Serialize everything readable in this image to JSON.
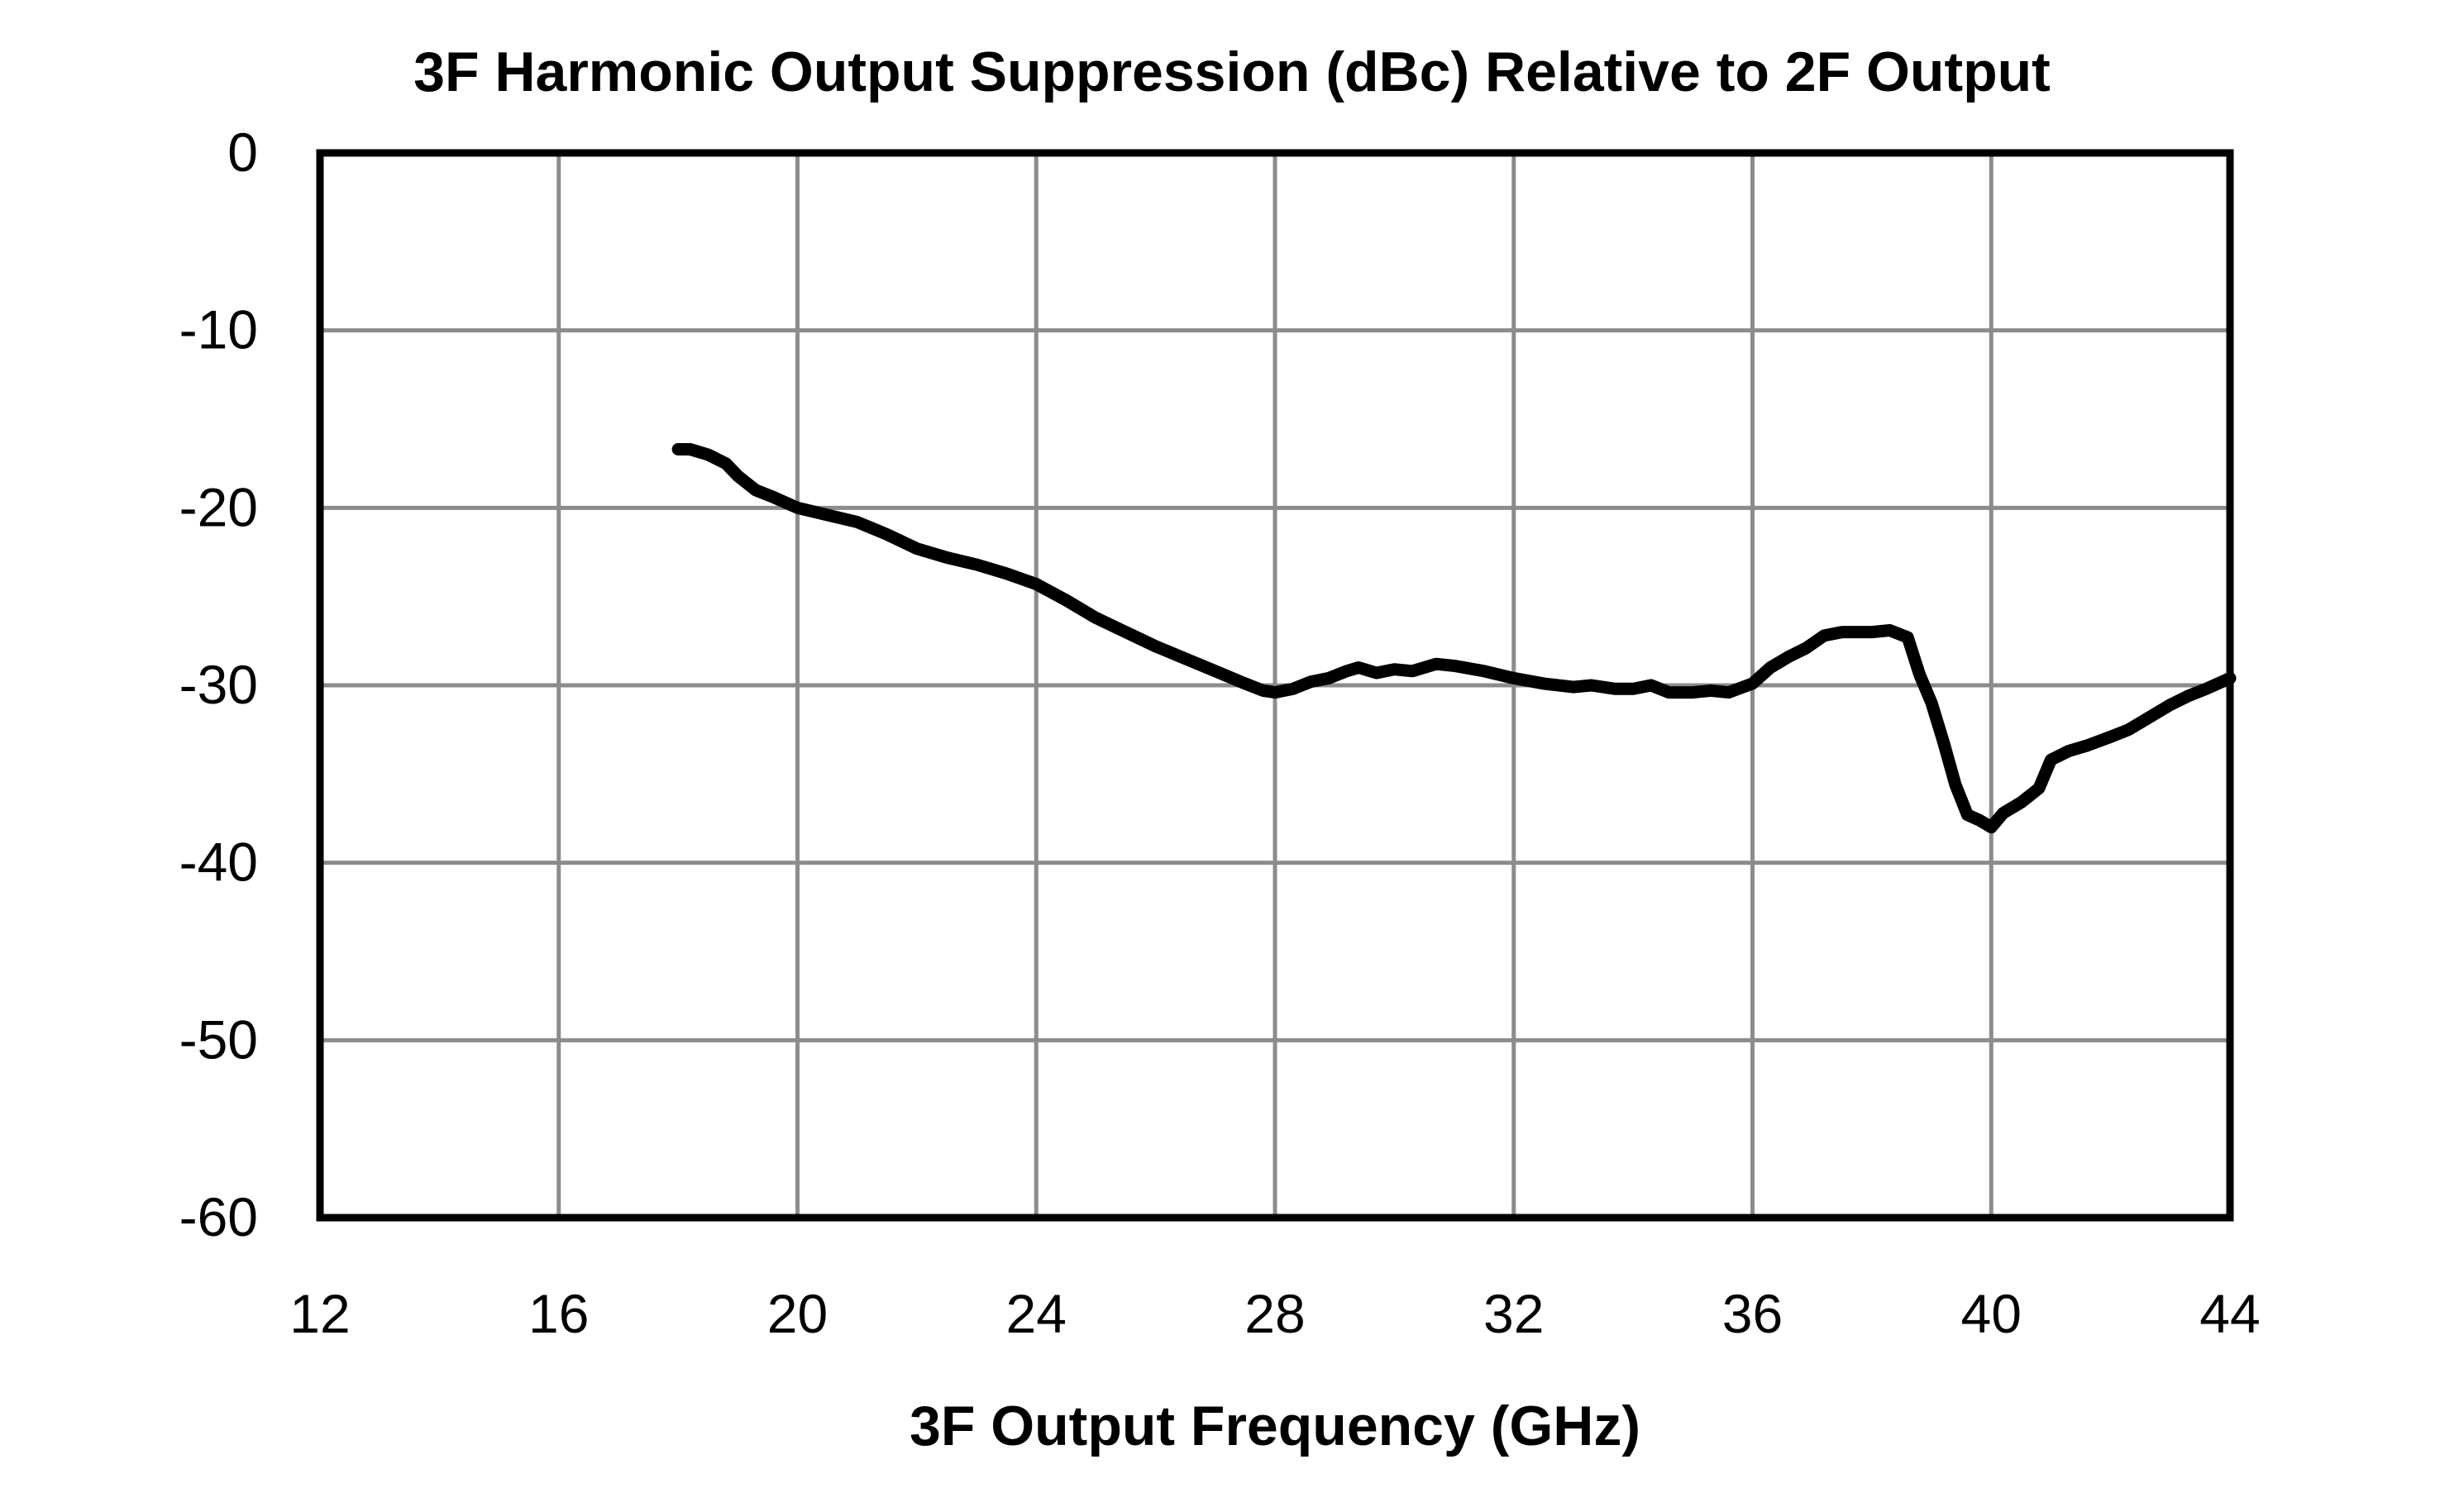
{
  "chart_data": {
    "type": "line",
    "title": "3F Harmonic Output Suppression (dBc) Relative to 2F Output",
    "xlabel": "3F Output Frequency (GHz)",
    "ylabel": "",
    "xlim": [
      12,
      44
    ],
    "ylim": [
      -60,
      0
    ],
    "x_ticks": [
      12,
      16,
      20,
      24,
      28,
      32,
      36,
      40,
      44
    ],
    "y_ticks": [
      0,
      -10,
      -20,
      -30,
      -40,
      -50,
      -60
    ],
    "x_tick_labels": [
      "12",
      "16",
      "20",
      "24",
      "28",
      "32",
      "36",
      "40",
      "44"
    ],
    "y_tick_labels": [
      "0",
      "-10",
      "-20",
      "-30",
      "-40",
      "-50",
      "-60"
    ],
    "grid": true,
    "legend": "none",
    "series": [
      {
        "color": "#000000",
        "x": [
          18.0,
          18.2,
          18.5,
          18.8,
          19.0,
          19.3,
          19.6,
          20.0,
          20.5,
          21.0,
          21.5,
          22.0,
          22.5,
          23.0,
          23.5,
          24.0,
          24.5,
          25.0,
          25.5,
          26.0,
          26.5,
          27.0,
          27.5,
          27.8,
          28.0,
          28.3,
          28.6,
          28.9,
          29.2,
          29.4,
          29.7,
          30.0,
          30.3,
          30.7,
          31.0,
          31.5,
          32.0,
          32.5,
          33.0,
          33.3,
          33.7,
          34.0,
          34.3,
          34.6,
          35.0,
          35.3,
          35.6,
          36.0,
          36.3,
          36.6,
          36.9,
          37.2,
          37.5,
          37.8,
          38.0,
          38.3,
          38.6,
          38.8,
          39.0,
          39.2,
          39.4,
          39.6,
          39.8,
          40.0,
          40.2,
          40.5,
          40.8,
          41.0,
          41.3,
          41.6,
          42.0,
          42.3,
          42.6,
          43.0,
          43.3,
          43.6,
          44.0
        ],
        "y": [
          -16.7,
          -16.7,
          -17.0,
          -17.5,
          -18.2,
          -19.0,
          -19.4,
          -20.0,
          -20.4,
          -20.8,
          -21.5,
          -22.3,
          -22.8,
          -23.2,
          -23.7,
          -24.3,
          -25.2,
          -26.2,
          -27.0,
          -27.8,
          -28.5,
          -29.2,
          -29.9,
          -30.3,
          -30.4,
          -30.2,
          -29.8,
          -29.6,
          -29.2,
          -29.0,
          -29.3,
          -29.1,
          -29.2,
          -28.8,
          -28.9,
          -29.2,
          -29.6,
          -29.9,
          -30.1,
          -30.0,
          -30.2,
          -30.2,
          -30.0,
          -30.4,
          -30.4,
          -30.3,
          -30.4,
          -29.9,
          -29.0,
          -28.4,
          -27.9,
          -27.2,
          -27.0,
          -27.0,
          -27.0,
          -26.9,
          -27.3,
          -29.4,
          -31.0,
          -33.2,
          -35.6,
          -37.3,
          -37.6,
          -38.0,
          -37.2,
          -36.6,
          -35.8,
          -34.2,
          -33.7,
          -33.4,
          -32.9,
          -32.5,
          -31.9,
          -31.1,
          -30.6,
          -30.2,
          -29.6
        ]
      }
    ]
  }
}
